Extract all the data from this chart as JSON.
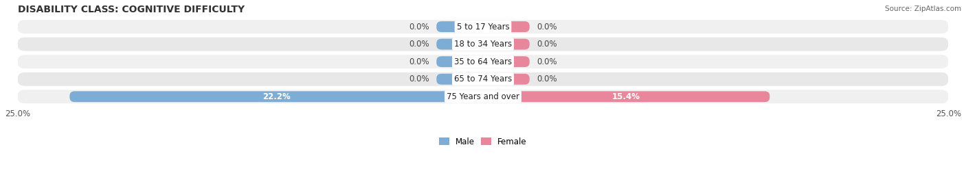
{
  "title": "DISABILITY CLASS: COGNITIVE DIFFICULTY",
  "source": "Source: ZipAtlas.com",
  "categories": [
    "5 to 17 Years",
    "18 to 34 Years",
    "35 to 64 Years",
    "65 to 74 Years",
    "75 Years and over"
  ],
  "male_values": [
    0.0,
    0.0,
    0.0,
    0.0,
    22.2
  ],
  "female_values": [
    0.0,
    0.0,
    0.0,
    0.0,
    15.4
  ],
  "male_labels": [
    "0.0%",
    "0.0%",
    "0.0%",
    "0.0%",
    "22.2%"
  ],
  "female_labels": [
    "0.0%",
    "0.0%",
    "0.0%",
    "0.0%",
    "15.4%"
  ],
  "x_max": 25.0,
  "male_color": "#7dadd4",
  "female_color": "#e8879c",
  "row_bg_odd": "#f0f0f0",
  "row_bg_even": "#e8e8e8",
  "title_fontsize": 10,
  "label_fontsize": 8.5,
  "axis_label_fontsize": 8.5,
  "category_fontsize": 8.5,
  "legend_fontsize": 8.5,
  "stub_val": 2.5
}
